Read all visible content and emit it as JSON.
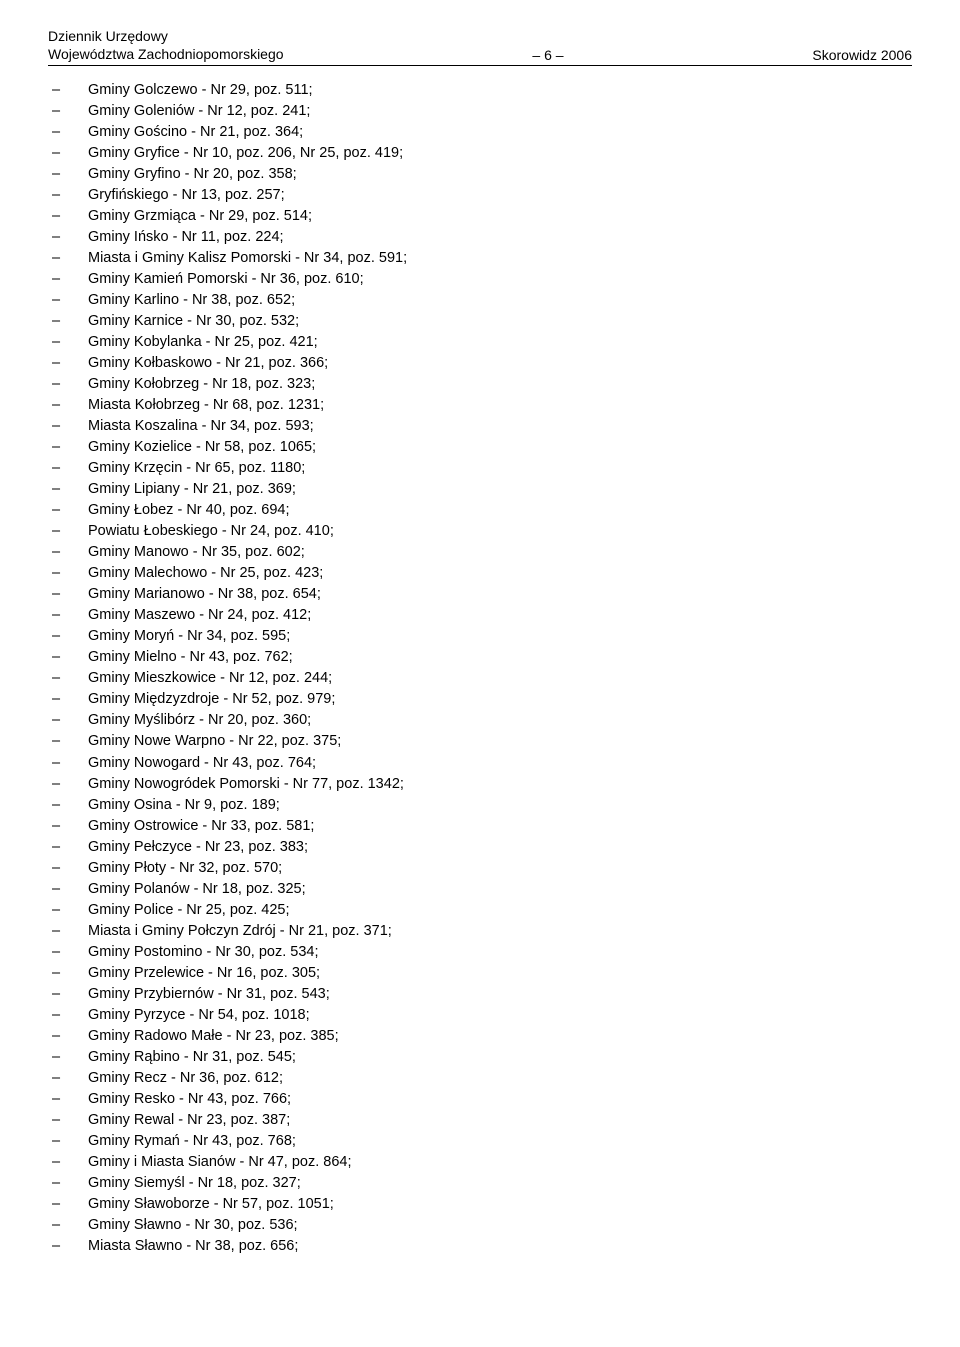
{
  "header": {
    "line1": "Dziennik Urzędowy",
    "line2": "Województwa Zachodniopomorskiego",
    "center": "– 6 –",
    "right": "Skorowidz 2006"
  },
  "entries": [
    "Gminy Golczewo - Nr 29, poz. 511;",
    "Gminy Goleniów - Nr 12, poz. 241;",
    "Gminy Gościno - Nr 21, poz. 364;",
    "Gminy Gryfice - Nr 10, poz. 206, Nr 25, poz. 419;",
    "Gminy Gryfino - Nr 20, poz. 358;",
    "Gryfińskiego - Nr 13, poz. 257;",
    "Gminy Grzmiąca - Nr 29, poz. 514;",
    "Gminy Ińsko - Nr 11, poz. 224;",
    "Miasta i Gminy Kalisz Pomorski - Nr 34, poz. 591;",
    "Gminy Kamień Pomorski - Nr 36, poz. 610;",
    "Gminy Karlino - Nr 38, poz. 652;",
    "Gminy Karnice - Nr 30, poz. 532;",
    "Gminy Kobylanka - Nr 25, poz. 421;",
    "Gminy Kołbaskowo - Nr 21, poz. 366;",
    "Gminy Kołobrzeg - Nr 18, poz. 323;",
    "Miasta Kołobrzeg - Nr 68, poz. 1231;",
    "Miasta Koszalina - Nr 34, poz. 593;",
    "Gminy Kozielice - Nr 58, poz. 1065;",
    "Gminy Krzęcin - Nr 65, poz. 1180;",
    "Gminy Lipiany - Nr 21, poz. 369;",
    "Gminy Łobez - Nr 40, poz. 694;",
    "Powiatu Łobeskiego - Nr 24, poz. 410;",
    "Gminy Manowo - Nr 35, poz. 602;",
    "Gminy Malechowo - Nr 25, poz. 423;",
    "Gminy Marianowo - Nr 38, poz. 654;",
    "Gminy Maszewo - Nr 24, poz. 412;",
    "Gminy Moryń - Nr 34, poz. 595;",
    "Gminy Mielno - Nr 43, poz. 762;",
    "Gminy Mieszkowice - Nr 12, poz. 244;",
    "Gminy Międzyzdroje - Nr 52, poz. 979;",
    "Gminy Myślibórz - Nr 20, poz. 360;",
    "Gminy Nowe Warpno - Nr 22, poz. 375;",
    "Gminy Nowogard - Nr 43, poz. 764;",
    "Gminy Nowogródek Pomorski - Nr 77, poz. 1342;",
    "Gminy Osina - Nr 9, poz. 189;",
    "Gminy Ostrowice - Nr 33, poz. 581;",
    "Gminy Pełczyce - Nr 23, poz. 383;",
    "Gminy Płoty - Nr 32, poz. 570;",
    "Gminy Polanów - Nr 18, poz. 325;",
    "Gminy Police - Nr 25, poz. 425;",
    "Miasta i Gminy Połczyn Zdrój - Nr 21, poz. 371;",
    "Gminy Postomino - Nr 30, poz. 534;",
    "Gminy Przelewice - Nr 16, poz. 305;",
    "Gminy Przybiernów - Nr 31, poz. 543;",
    "Gminy Pyrzyce - Nr 54, poz. 1018;",
    "Gminy Radowo Małe - Nr 23, poz. 385;",
    "Gminy Rąbino - Nr 31, poz. 545;",
    "Gminy Recz - Nr 36, poz. 612;",
    "Gminy Resko - Nr 43, poz. 766;",
    "Gminy Rewal - Nr 23, poz. 387;",
    "Gminy Rymań - Nr 43, poz. 768;",
    "Gminy i Miasta Sianów - Nr 47, poz. 864;",
    "Gminy Siemyśl - Nr 18, poz. 327;",
    "Gminy Sławoborze - Nr 57, poz. 1051;",
    "Gminy Sławno - Nr 30, poz. 536;",
    "Miasta Sławno - Nr 38, poz. 656;"
  ],
  "dash": "–"
}
